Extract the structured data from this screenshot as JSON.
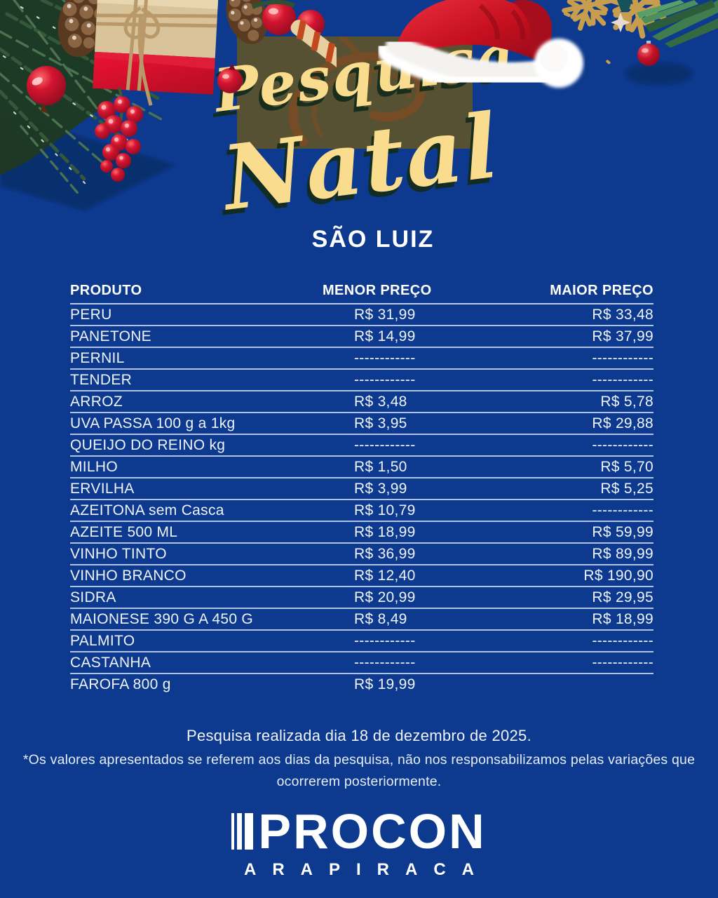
{
  "header": {
    "title_line1": "Pesquisa",
    "title_line2": "Natal",
    "store_name": "SÃO LUIZ"
  },
  "table": {
    "headers": {
      "produto": "PRODUTO",
      "menor": "MENOR PREÇO",
      "maior": "MAIOR PREÇO"
    },
    "rows": [
      {
        "produto": "PERU",
        "menor": "R$ 31,99",
        "maior": "R$ 33,48"
      },
      {
        "produto": "PANETONE",
        "menor": "R$ 14,99",
        "maior": "R$ 37,99"
      },
      {
        "produto": "PERNIL",
        "menor": "------------",
        "maior": "------------"
      },
      {
        "produto": "TENDER",
        "menor": "------------",
        "maior": "------------"
      },
      {
        "produto": "ARROZ",
        "menor": "R$ 3,48",
        "maior": "R$ 5,78"
      },
      {
        "produto": "UVA PASSA 100 g a 1kg",
        "menor": "R$ 3,95",
        "maior": "R$ 29,88"
      },
      {
        "produto": "QUEIJO DO REINO kg",
        "menor": "------------",
        "maior": "------------"
      },
      {
        "produto": "MILHO",
        "menor": "R$ 1,50",
        "maior": "R$ 5,70"
      },
      {
        "produto": "ERVILHA",
        "menor": "R$ 3,99",
        "maior": "R$ 5,25"
      },
      {
        "produto": "AZEITONA sem Casca",
        "menor": "R$ 10,79",
        "maior": "------------"
      },
      {
        "produto": "AZEITE 500 ML",
        "menor": "R$ 18,99",
        "maior": "R$ 59,99"
      },
      {
        "produto": "VINHO TINTO",
        "menor": "R$ 36,99",
        "maior": "R$ 89,99"
      },
      {
        "produto": "VINHO BRANCO",
        "menor": "R$ 12,40",
        "maior": "R$ 190,90"
      },
      {
        "produto": "SIDRA",
        "menor": "R$ 20,99",
        "maior": "R$ 29,95"
      },
      {
        "produto": "MAIONESE 390 G A 450 G",
        "menor": "R$ 8,49",
        "maior": "R$ 18,99"
      },
      {
        "produto": "PALMITO",
        "menor": "------------",
        "maior": "------------"
      },
      {
        "produto": "CASTANHA",
        "menor": "------------",
        "maior": "------------"
      },
      {
        "produto": "FAROFA 800 g",
        "menor": "R$ 19,99",
        "maior": ""
      }
    ]
  },
  "footer": {
    "survey_date_note": "Pesquisa realizada dia 18 de dezembro de 2025.",
    "disclaimer": "*Os valores apresentados se referem aos dias da pesquisa, não nos responsabilizamos pelas variações que ocorrerem posteriormente."
  },
  "logo": {
    "name": "PROCON",
    "city": "ARAPIRACA"
  },
  "colors": {
    "background": "#0d3a8e",
    "title_yellow": "#fadc8e",
    "title_shadow_green": "#12321c",
    "panel_olive": "#565132",
    "text_white": "#eef3fb",
    "santa_red": "#cf1126",
    "gold": "#c89d4d"
  },
  "decorations": [
    "pine-branch-icon",
    "gift-box-icon",
    "pinecone-icon",
    "berries-icon",
    "pomegranate-icon",
    "santa-hat-icon",
    "gold-snowflake-icon",
    "ornament-ball-icon",
    "palm-leaves-icon",
    "star-icon"
  ]
}
